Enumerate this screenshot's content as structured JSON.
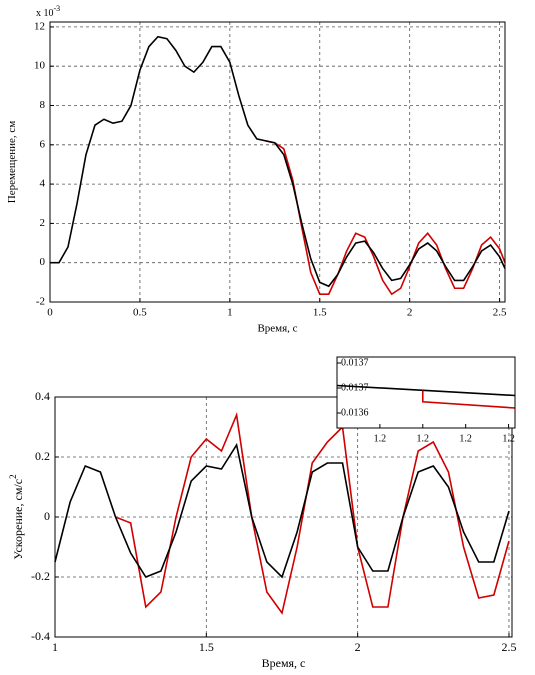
{
  "chart_data": [
    {
      "type": "line",
      "xlabel": "Время, с",
      "ylabel": "Перемещение, см",
      "multiplier": "x 10",
      "multiplier_exp": "-3",
      "x": [
        0,
        0.05,
        0.1,
        0.15,
        0.2,
        0.25,
        0.3,
        0.35,
        0.4,
        0.45,
        0.5,
        0.55,
        0.6,
        0.65,
        0.7,
        0.75,
        0.8,
        0.85,
        0.9,
        0.95,
        1.0,
        1.05,
        1.1,
        1.15,
        1.2,
        1.25,
        1.3,
        1.35,
        1.4,
        1.45,
        1.5,
        1.55,
        1.6,
        1.65,
        1.7,
        1.75,
        1.8,
        1.85,
        1.9,
        1.95,
        2.0,
        2.05,
        2.1,
        2.15,
        2.2,
        2.25,
        2.3,
        2.35,
        2.4,
        2.45,
        2.5,
        2.53
      ],
      "series": [
        {
          "color": "#d00000",
          "values": [
            null,
            null,
            null,
            null,
            null,
            null,
            null,
            null,
            null,
            null,
            null,
            null,
            null,
            null,
            null,
            null,
            null,
            null,
            null,
            null,
            null,
            null,
            null,
            null,
            6.2,
            6.1,
            5.8,
            4.2,
            1.8,
            -0.5,
            -1.6,
            -1.6,
            -0.6,
            0.6,
            1.5,
            1.3,
            0.3,
            -0.9,
            -1.6,
            -1.3,
            -0.2,
            1,
            1.5,
            0.9,
            -0.3,
            -1.3,
            -1.3,
            -0.3,
            0.9,
            1.3,
            0.7,
            0
          ]
        },
        {
          "color": "#000000",
          "values": [
            0,
            0,
            0.8,
            3,
            5.5,
            7,
            7.3,
            7.1,
            7.2,
            8,
            9.8,
            11,
            11.5,
            11.4,
            10.8,
            10,
            9.7,
            10.2,
            11,
            11,
            10.2,
            8.5,
            7,
            6.3,
            6.2,
            6.1,
            5.5,
            4,
            2,
            0.2,
            -1,
            -1.2,
            -0.6,
            0.3,
            1,
            1.1,
            0.5,
            -0.3,
            -0.9,
            -0.8,
            -0.1,
            0.7,
            1,
            0.6,
            -0.2,
            -0.9,
            -0.9,
            -0.2,
            0.6,
            0.9,
            0.3,
            -0.3
          ]
        }
      ],
      "xlim": [
        0,
        2.53
      ],
      "xticks": [
        0,
        0.5,
        1,
        1.5,
        2,
        2.5
      ],
      "ylim": [
        -2,
        12.25
      ],
      "yticks": [
        -2,
        0,
        2,
        4,
        6,
        8,
        10,
        12
      ],
      "grid": true
    },
    {
      "type": "line",
      "xlabel": "Время, с",
      "ylabel": "Ускорение, см/с",
      "ylabel_exp": "2",
      "x": [
        1.0,
        1.05,
        1.1,
        1.15,
        1.2,
        1.25,
        1.3,
        1.35,
        1.4,
        1.45,
        1.5,
        1.55,
        1.6,
        1.65,
        1.7,
        1.75,
        1.8,
        1.85,
        1.9,
        1.95,
        2.0,
        2.05,
        2.1,
        2.15,
        2.2,
        2.25,
        2.3,
        2.35,
        2.4,
        2.45,
        2.5
      ],
      "series": [
        {
          "color": "#d00000",
          "values": [
            null,
            null,
            null,
            null,
            0.0,
            -0.02,
            -0.3,
            -0.25,
            0.0,
            0.2,
            0.26,
            0.22,
            0.34,
            0.0,
            -0.25,
            -0.32,
            -0.1,
            0.18,
            0.25,
            0.3,
            -0.1,
            -0.3,
            -0.3,
            0.0,
            0.22,
            0.25,
            0.15,
            -0.1,
            -0.27,
            -0.26,
            -0.08
          ]
        },
        {
          "color": "#000000",
          "values": [
            -0.15,
            0.05,
            0.17,
            0.15,
            0.0,
            -0.12,
            -0.2,
            -0.18,
            -0.05,
            0.12,
            0.17,
            0.16,
            0.24,
            0.0,
            -0.15,
            -0.2,
            -0.05,
            0.15,
            0.18,
            0.18,
            -0.1,
            -0.18,
            -0.18,
            0.0,
            0.15,
            0.17,
            0.1,
            -0.05,
            -0.15,
            -0.15,
            0.02
          ]
        }
      ],
      "xlim": [
        1,
        2.51
      ],
      "xticks": [
        1,
        1.5,
        2,
        2.5
      ],
      "ylim": [
        -0.4,
        0.4
      ],
      "yticks": [
        -0.4,
        -0.2,
        0,
        0.2,
        0.4
      ],
      "grid": true
    },
    {
      "type": "line",
      "series": [
        {
          "color": "#000000",
          "x": [
            1.1996,
            1.20043
          ],
          "values": [
            0.013662,
            0.013654
          ]
        },
        {
          "color": "#d00000",
          "x": [
            1.2,
            1.2,
            1.20043
          ],
          "values": [
            0.013658,
            0.013649,
            0.013644
          ]
        }
      ],
      "xlim": [
        1.1996,
        1.20043
      ],
      "xticks": [
        {
          "value": 1.1998,
          "label": "1.2"
        },
        {
          "value": 1.2,
          "label": "1.2"
        },
        {
          "value": 1.2002,
          "label": "1.2"
        },
        {
          "value": 1.2004,
          "label": "1.2"
        }
      ],
      "ylim": [
        0.013628,
        0.0136848
      ],
      "yticks": [
        {
          "value": 0.01364,
          "label": "0.0136"
        },
        {
          "value": 0.01366,
          "label": "0.0137"
        },
        {
          "value": 0.01368,
          "label": "0.0137"
        }
      ],
      "grid": false
    }
  ]
}
